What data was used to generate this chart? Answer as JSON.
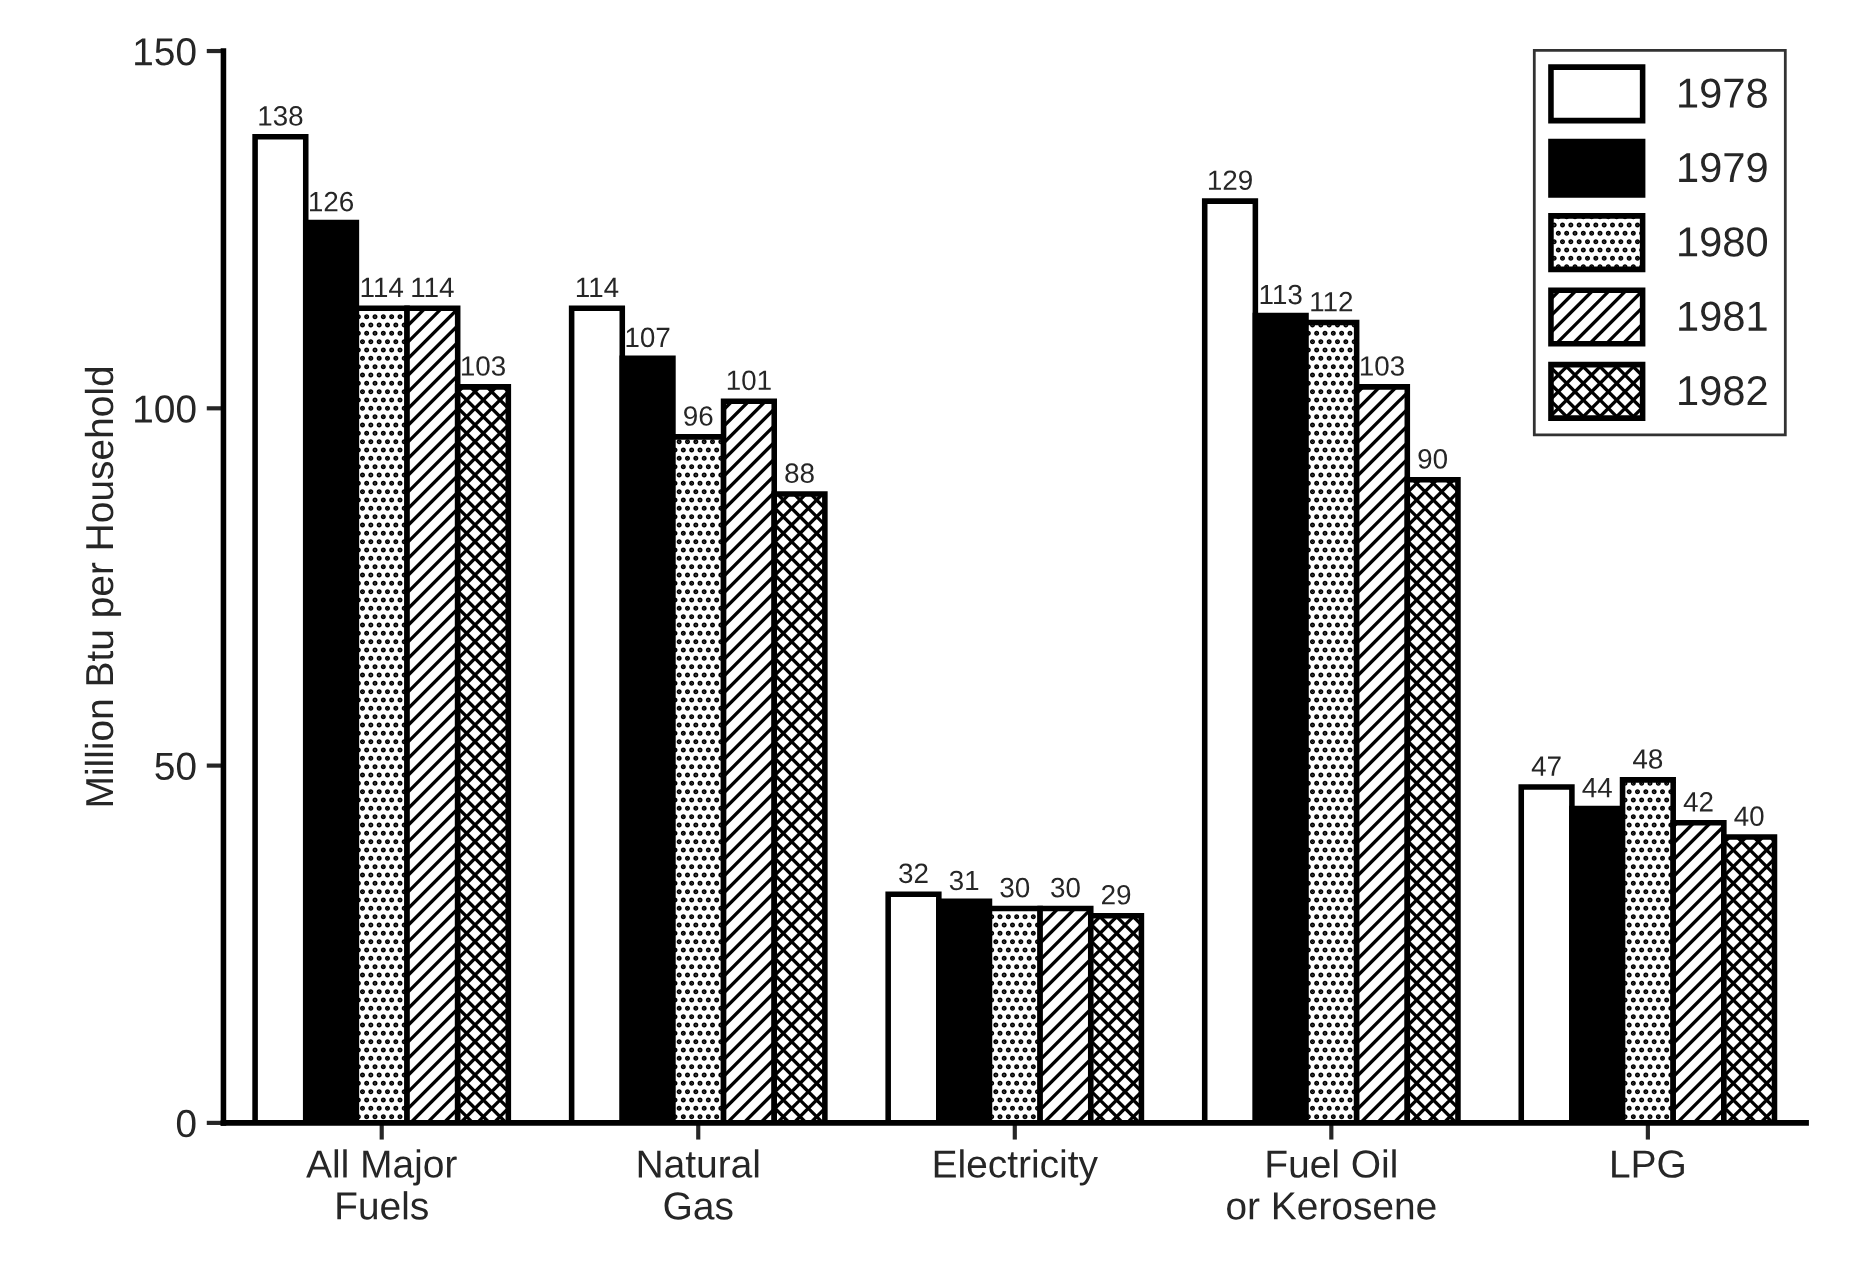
{
  "chart_data": {
    "type": "bar",
    "ylabel": "Million Btu per Household",
    "categories": [
      "All Major\nFuels",
      "Natural\nGas",
      "Electricity",
      "Fuel Oil\nor Kerosene",
      "LPG"
    ],
    "series": [
      {
        "name": "1978",
        "color": "#ffffff",
        "values": [
          138,
          114,
          32,
          129,
          47
        ]
      },
      {
        "name": "1979",
        "color": "#000000",
        "values": [
          126,
          107,
          31,
          113,
          44
        ]
      },
      {
        "name": "1980",
        "color": "#000000",
        "values": [
          114,
          96,
          30,
          112,
          48
        ]
      },
      {
        "name": "1981",
        "color": "#000000",
        "values": [
          114,
          101,
          30,
          103,
          42
        ]
      },
      {
        "name": "1982",
        "color": "#000000",
        "values": [
          103,
          88,
          29,
          90,
          40
        ]
      }
    ],
    "ylim": [
      0,
      150
    ],
    "yticks": [
      0,
      50,
      100,
      150
    ],
    "grid": false,
    "legend": "top right",
    "data_labels": true
  }
}
